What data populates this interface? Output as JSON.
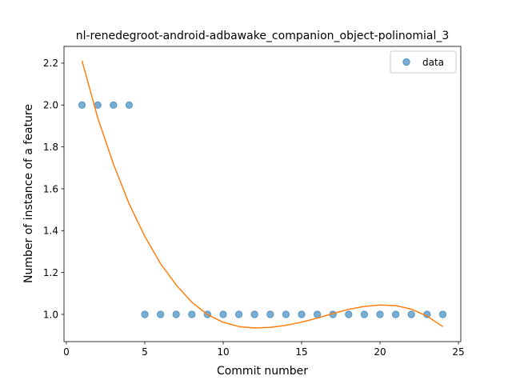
{
  "chart_data": {
    "type": "scatter",
    "title": "nl-renedegroot-android-adbawake_companion_object-polinomial_3",
    "xlabel": "Commit number",
    "ylabel": "Number of instance of a feature",
    "xlim": [
      -0.15,
      25.15
    ],
    "ylim": [
      0.87,
      2.28
    ],
    "xticks": [
      0,
      5,
      10,
      15,
      20,
      25
    ],
    "yticks": [
      1.0,
      1.2,
      1.4,
      1.6,
      1.8,
      2.0,
      2.2
    ],
    "grid": false,
    "legend_position": "top-right",
    "series": [
      {
        "name": "data",
        "kind": "scatter",
        "color": "#1f77b4",
        "x": [
          1,
          2,
          3,
          4,
          5,
          6,
          7,
          8,
          9,
          10,
          11,
          12,
          13,
          14,
          15,
          16,
          17,
          18,
          19,
          20,
          21,
          22,
          23,
          24
        ],
        "y": [
          2,
          2,
          2,
          2,
          1,
          1,
          1,
          1,
          1,
          1,
          1,
          1,
          1,
          1,
          1,
          1,
          1,
          1,
          1,
          1,
          1,
          1,
          1,
          1
        ]
      },
      {
        "kind": "line",
        "color": "#ff7f0e",
        "x": [
          1,
          2,
          3,
          4,
          5,
          6,
          7,
          8,
          9,
          10,
          11,
          12,
          13,
          14,
          15,
          16,
          17,
          18,
          19,
          20,
          21,
          22,
          23,
          24
        ],
        "y": [
          2.212,
          1.938,
          1.718,
          1.528,
          1.373,
          1.243,
          1.141,
          1.058,
          0.999,
          0.962,
          0.942,
          0.935,
          0.938,
          0.948,
          0.963,
          0.982,
          1.004,
          1.024,
          1.038,
          1.045,
          1.042,
          1.025,
          0.992,
          0.942
        ]
      }
    ]
  }
}
